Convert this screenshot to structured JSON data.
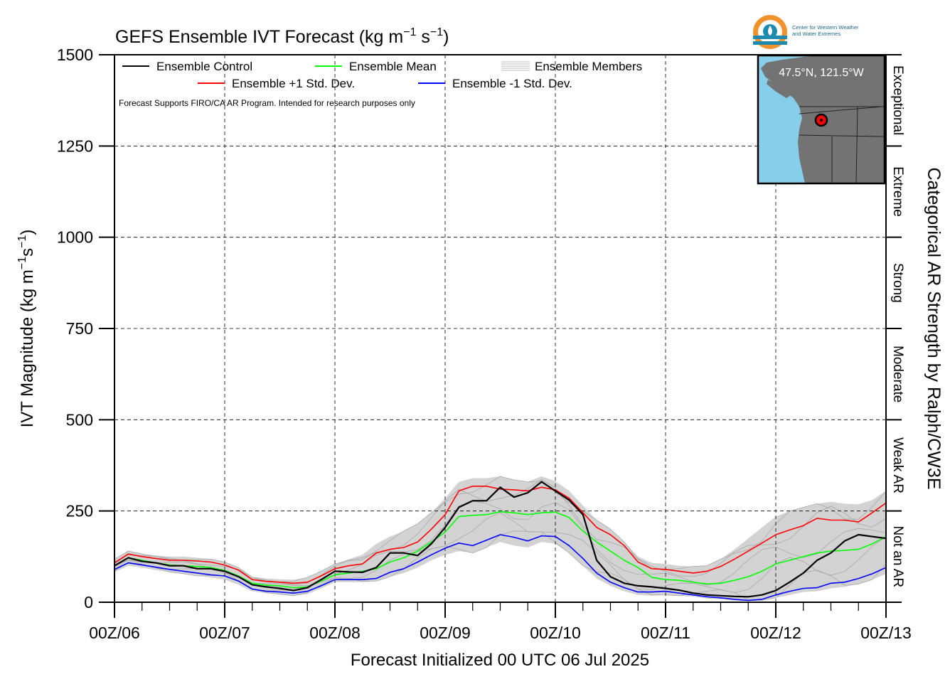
{
  "title": {
    "main": "GEFS Ensemble IVT Forecast (kg m",
    "sup1": "−1",
    "mid": " s",
    "sup2": "−1",
    "end": ")"
  },
  "logo": {
    "line1": "Center for Western Weather",
    "line2": "and Water Extremes",
    "colors": {
      "orange": "#f2922c",
      "teal": "#1e8ab0"
    }
  },
  "inset": {
    "location": "47.5°N, 121.5°W",
    "ocean_color": "#87ceeb",
    "land_color": "#737373",
    "point_color": "#ff0000"
  },
  "disclaimer": "Forecast Supports FIRO/CA AR Program. Intended for research purposes only",
  "right_axis": {
    "label": "Categorical AR Strength by Ralph/CW3E",
    "categories": [
      {
        "name": "Not an AR",
        "range": [
          0,
          250
        ]
      },
      {
        "name": "Weak AR",
        "range": [
          250,
          500
        ]
      },
      {
        "name": "Moderate",
        "range": [
          500,
          750
        ]
      },
      {
        "name": "Strong",
        "range": [
          750,
          1000
        ]
      },
      {
        "name": "Extreme",
        "range": [
          1000,
          1250
        ]
      },
      {
        "name": "Exceptional",
        "range": [
          1250,
          1500
        ]
      }
    ]
  },
  "chart_data": {
    "type": "line",
    "title": "GEFS Ensemble IVT Forecast (kg m−1 s−1)",
    "xlabel": "Forecast Initialized 00 UTC 06 Jul 2025",
    "ylabel": "IVT Magnitude (kg m⁻¹s⁻¹)",
    "ylim": [
      0,
      1500
    ],
    "xlim": [
      0,
      168
    ],
    "x_unit": "forecast hours",
    "yticks": [
      0,
      250,
      500,
      750,
      1000,
      1250,
      1500
    ],
    "xtick_labels": [
      "00Z/06",
      "00Z/07",
      "00Z/08",
      "00Z/09",
      "00Z/10",
      "00Z/11",
      "00Z/12",
      "00Z/13"
    ],
    "xtick_hours": [
      0,
      24,
      48,
      72,
      96,
      120,
      144,
      168
    ],
    "grid": true,
    "legend": "top-left",
    "x": [
      0,
      3,
      6,
      9,
      12,
      15,
      18,
      21,
      24,
      27,
      30,
      33,
      36,
      39,
      42,
      45,
      48,
      51,
      54,
      57,
      60,
      63,
      66,
      69,
      72,
      75,
      78,
      81,
      84,
      87,
      90,
      93,
      96,
      99,
      102,
      105,
      108,
      111,
      114,
      117,
      120,
      123,
      126,
      129,
      132,
      135,
      138,
      141,
      144,
      147,
      150,
      153,
      156,
      159,
      162,
      165,
      168
    ],
    "series": [
      {
        "name": "Ensemble Control",
        "color": "#000000",
        "values": [
          100,
          122,
          112,
          108,
          100,
          100,
          92,
          92,
          85,
          70,
          48,
          42,
          38,
          32,
          40,
          62,
          85,
          83,
          82,
          95,
          135,
          135,
          128,
          160,
          205,
          260,
          278,
          278,
          315,
          288,
          300,
          330,
          305,
          280,
          240,
          115,
          70,
          52,
          45,
          42,
          38,
          33,
          25,
          20,
          18,
          16,
          15,
          20,
          32,
          55,
          80,
          115,
          135,
          168,
          185,
          180,
          175
        ]
      },
      {
        "name": "Ensemble Mean",
        "color": "#00ff00",
        "values": [
          100,
          122,
          115,
          108,
          102,
          100,
          98,
          95,
          87,
          72,
          52,
          47,
          45,
          40,
          42,
          58,
          75,
          80,
          85,
          92,
          110,
          122,
          140,
          165,
          192,
          235,
          238,
          240,
          248,
          245,
          240,
          245,
          247,
          232,
          195,
          165,
          140,
          115,
          95,
          68,
          62,
          60,
          55,
          50,
          52,
          60,
          70,
          85,
          105,
          115,
          125,
          135,
          140,
          142,
          145,
          160,
          180
        ]
      },
      {
        "name": "Ensemble +1 Std. Dev.",
        "color": "#ff0000",
        "values": [
          108,
          132,
          125,
          120,
          115,
          115,
          113,
          110,
          102,
          88,
          62,
          57,
          55,
          52,
          55,
          72,
          92,
          100,
          105,
          135,
          145,
          150,
          165,
          200,
          240,
          305,
          318,
          318,
          310,
          308,
          305,
          315,
          308,
          285,
          245,
          205,
          185,
          155,
          110,
          92,
          90,
          85,
          80,
          85,
          98,
          118,
          140,
          162,
          185,
          198,
          210,
          230,
          225,
          225,
          220,
          245,
          272
        ]
      },
      {
        "name": "Ensemble -1 Std. Dev.",
        "color": "#0000ff",
        "values": [
          90,
          108,
          102,
          96,
          90,
          85,
          80,
          75,
          72,
          58,
          36,
          30,
          28,
          25,
          30,
          45,
          62,
          62,
          62,
          65,
          82,
          92,
          110,
          130,
          148,
          162,
          155,
          170,
          185,
          178,
          168,
          182,
          180,
          155,
          120,
          80,
          55,
          40,
          28,
          28,
          30,
          25,
          20,
          15,
          12,
          8,
          5,
          8,
          20,
          30,
          38,
          40,
          52,
          55,
          65,
          78,
          95
        ]
      }
    ],
    "members_envelope": {
      "name": "Ensemble Members",
      "color": "#d3d3d3",
      "upper": [
        118,
        140,
        132,
        128,
        125,
        125,
        122,
        118,
        110,
        95,
        70,
        65,
        63,
        62,
        68,
        85,
        105,
        118,
        130,
        160,
        180,
        195,
        215,
        245,
        285,
        330,
        340,
        340,
        345,
        335,
        330,
        345,
        332,
        305,
        265,
        225,
        200,
        165,
        125,
        108,
        105,
        100,
        98,
        100,
        118,
        145,
        175,
        205,
        235,
        250,
        260,
        270,
        275,
        270,
        268,
        280,
        305
      ],
      "lower": [
        82,
        100,
        95,
        88,
        82,
        78,
        72,
        68,
        62,
        48,
        30,
        25,
        22,
        18,
        22,
        38,
        55,
        55,
        55,
        58,
        70,
        80,
        95,
        115,
        130,
        140,
        135,
        150,
        165,
        155,
        150,
        165,
        160,
        135,
        100,
        65,
        45,
        30,
        20,
        18,
        20,
        18,
        15,
        10,
        8,
        5,
        3,
        5,
        12,
        20,
        28,
        30,
        38,
        42,
        50,
        62,
        78
      ]
    }
  }
}
